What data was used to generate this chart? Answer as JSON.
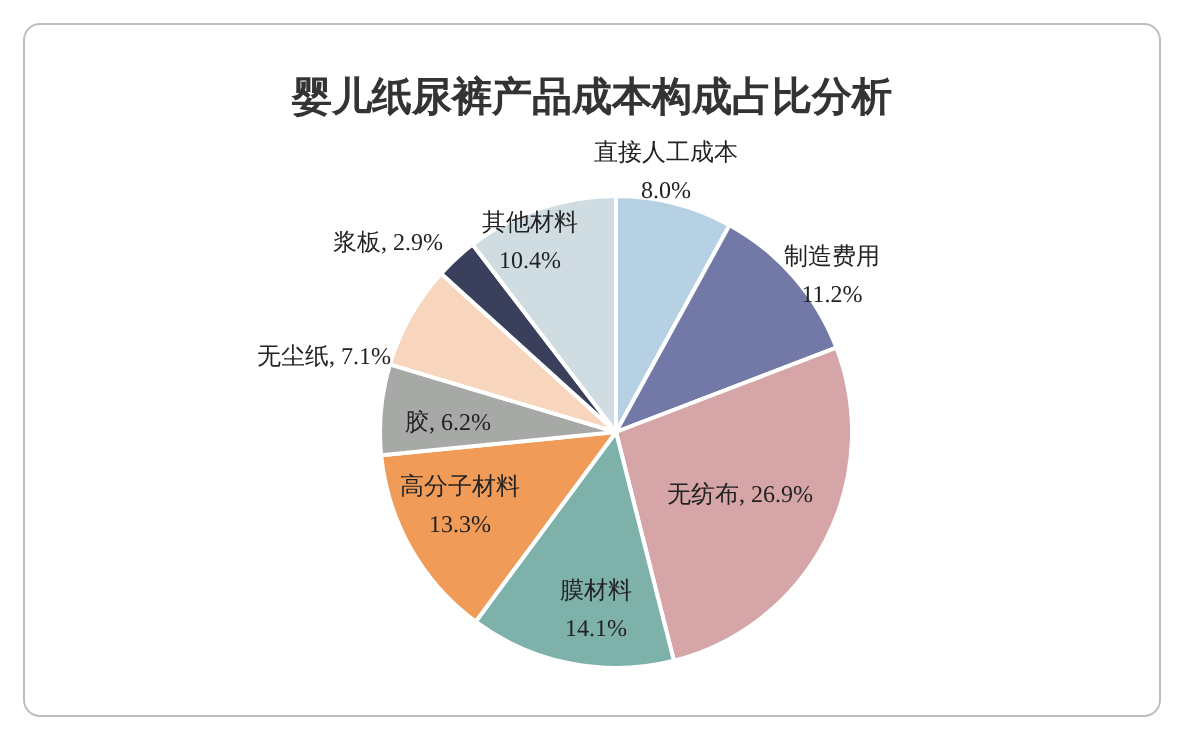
{
  "chart_data": {
    "type": "pie",
    "title": "婴儿纸尿裤产品成本构成占比分析",
    "categories": [
      "直接人工成本",
      "制造费用",
      "无纺布",
      "膜材料",
      "高分子材料",
      "胶",
      "无尘纸",
      "浆板",
      "其他材料"
    ],
    "values": [
      8.0,
      11.2,
      26.9,
      14.1,
      13.3,
      6.2,
      7.1,
      2.9,
      10.4
    ],
    "value_labels": [
      "8.0%",
      "11.2%",
      "26.9%",
      "14.1%",
      "13.3%",
      "6.2%",
      "7.1%",
      "2.9%",
      "10.4%"
    ],
    "colors": [
      "#b7d1e4",
      "#7379a6",
      "#d6a5a7",
      "#7fb1ab",
      "#f09b58",
      "#a7a9a6",
      "#f8d5bd",
      "#3a3f5c",
      "#cfdde2"
    ]
  }
}
